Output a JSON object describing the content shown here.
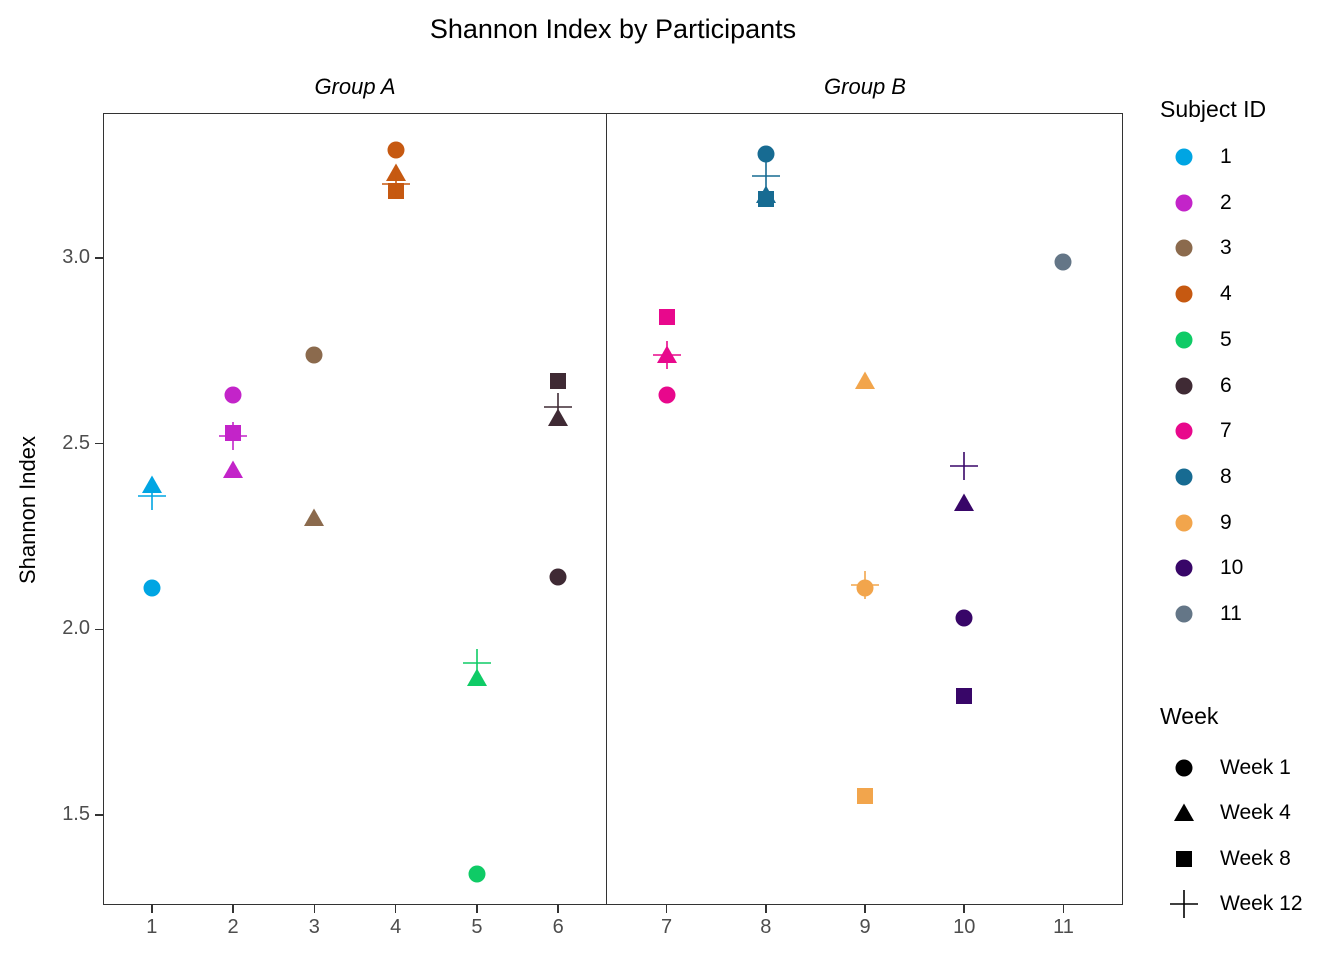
{
  "title": "Shannon Index by Participants",
  "y_axis": {
    "label": "Shannon Index",
    "tick_labels": [
      "3.0",
      "2.5",
      "2.0",
      "1.5"
    ],
    "tick_values": [
      3.0,
      2.5,
      2.0,
      1.5
    ]
  },
  "facets": [
    {
      "label": "Group A",
      "categories": [
        "1",
        "2",
        "3",
        "4",
        "5",
        "6"
      ]
    },
    {
      "label": "Group B",
      "categories": [
        "7",
        "8",
        "9",
        "10",
        "11"
      ]
    }
  ],
  "legend": {
    "subject_title": "Subject ID",
    "subjects": [
      {
        "id": "1",
        "color": "#00A5E3"
      },
      {
        "id": "2",
        "color": "#C324C9"
      },
      {
        "id": "3",
        "color": "#8B6A4D"
      },
      {
        "id": "4",
        "color": "#C65911"
      },
      {
        "id": "5",
        "color": "#0FCB66"
      },
      {
        "id": "6",
        "color": "#3F2A34"
      },
      {
        "id": "7",
        "color": "#E8088C"
      },
      {
        "id": "8",
        "color": "#176B92"
      },
      {
        "id": "9",
        "color": "#F2A54C"
      },
      {
        "id": "10",
        "color": "#380668"
      },
      {
        "id": "11",
        "color": "#647687"
      }
    ],
    "week_title": "Week",
    "weeks": [
      {
        "label": "Week 1",
        "shape": "circle"
      },
      {
        "label": "Week 4",
        "shape": "triangle"
      },
      {
        "label": "Week 8",
        "shape": "square"
      },
      {
        "label": "Week 12",
        "shape": "plus"
      }
    ]
  },
  "chart_data": {
    "type": "scatter",
    "title": "Shannon Index by Participants",
    "xlabel": "",
    "ylabel": "Shannon Index",
    "ylim": [
      1.26,
      3.39
    ],
    "y_ticks": [
      1.5,
      2.0,
      2.5,
      3.0
    ],
    "grid": false,
    "legend_position": "right",
    "facets": [
      "Group A",
      "Group B"
    ],
    "shape_by_week": {
      "Week 1": "circle",
      "Week 4": "triangle",
      "Week 8": "square",
      "Week 12": "plus"
    },
    "points": [
      {
        "subject": 1,
        "group": "Group A",
        "week": "Week 1",
        "value": 2.11
      },
      {
        "subject": 1,
        "group": "Group A",
        "week": "Week 4",
        "value": 2.39
      },
      {
        "subject": 1,
        "group": "Group A",
        "week": "Week 12",
        "value": 2.36
      },
      {
        "subject": 2,
        "group": "Group A",
        "week": "Week 1",
        "value": 2.63
      },
      {
        "subject": 2,
        "group": "Group A",
        "week": "Week 4",
        "value": 2.43
      },
      {
        "subject": 2,
        "group": "Group A",
        "week": "Week 8",
        "value": 2.53
      },
      {
        "subject": 2,
        "group": "Group A",
        "week": "Week 12",
        "value": 2.52
      },
      {
        "subject": 3,
        "group": "Group A",
        "week": "Week 1",
        "value": 2.74
      },
      {
        "subject": 3,
        "group": "Group A",
        "week": "Week 4",
        "value": 2.3
      },
      {
        "subject": 4,
        "group": "Group A",
        "week": "Week 1",
        "value": 3.29
      },
      {
        "subject": 4,
        "group": "Group A",
        "week": "Week 4",
        "value": 3.23
      },
      {
        "subject": 4,
        "group": "Group A",
        "week": "Week 8",
        "value": 3.18
      },
      {
        "subject": 4,
        "group": "Group A",
        "week": "Week 12",
        "value": 3.2
      },
      {
        "subject": 5,
        "group": "Group A",
        "week": "Week 1",
        "value": 1.34
      },
      {
        "subject": 5,
        "group": "Group A",
        "week": "Week 4",
        "value": 1.87
      },
      {
        "subject": 5,
        "group": "Group A",
        "week": "Week 12",
        "value": 1.91
      },
      {
        "subject": 6,
        "group": "Group A",
        "week": "Week 1",
        "value": 2.14
      },
      {
        "subject": 6,
        "group": "Group A",
        "week": "Week 4",
        "value": 2.57
      },
      {
        "subject": 6,
        "group": "Group A",
        "week": "Week 8",
        "value": 2.67
      },
      {
        "subject": 6,
        "group": "Group A",
        "week": "Week 12",
        "value": 2.6
      },
      {
        "subject": 7,
        "group": "Group B",
        "week": "Week 1",
        "value": 2.63
      },
      {
        "subject": 7,
        "group": "Group B",
        "week": "Week 4",
        "value": 2.74
      },
      {
        "subject": 7,
        "group": "Group B",
        "week": "Week 8",
        "value": 2.84
      },
      {
        "subject": 7,
        "group": "Group B",
        "week": "Week 12",
        "value": 2.74
      },
      {
        "subject": 8,
        "group": "Group B",
        "week": "Week 1",
        "value": 3.28
      },
      {
        "subject": 8,
        "group": "Group B",
        "week": "Week 4",
        "value": 3.17
      },
      {
        "subject": 8,
        "group": "Group B",
        "week": "Week 8",
        "value": 3.16
      },
      {
        "subject": 8,
        "group": "Group B",
        "week": "Week 12",
        "value": 3.22
      },
      {
        "subject": 9,
        "group": "Group B",
        "week": "Week 1",
        "value": 2.11
      },
      {
        "subject": 9,
        "group": "Group B",
        "week": "Week 4",
        "value": 2.67
      },
      {
        "subject": 9,
        "group": "Group B",
        "week": "Week 8",
        "value": 1.55
      },
      {
        "subject": 9,
        "group": "Group B",
        "week": "Week 12",
        "value": 2.12
      },
      {
        "subject": 10,
        "group": "Group B",
        "week": "Week 1",
        "value": 2.03
      },
      {
        "subject": 10,
        "group": "Group B",
        "week": "Week 4",
        "value": 2.34
      },
      {
        "subject": 10,
        "group": "Group B",
        "week": "Week 8",
        "value": 1.82
      },
      {
        "subject": 10,
        "group": "Group B",
        "week": "Week 12",
        "value": 2.44
      },
      {
        "subject": 11,
        "group": "Group B",
        "week": "Week 1",
        "value": 2.99
      }
    ]
  }
}
